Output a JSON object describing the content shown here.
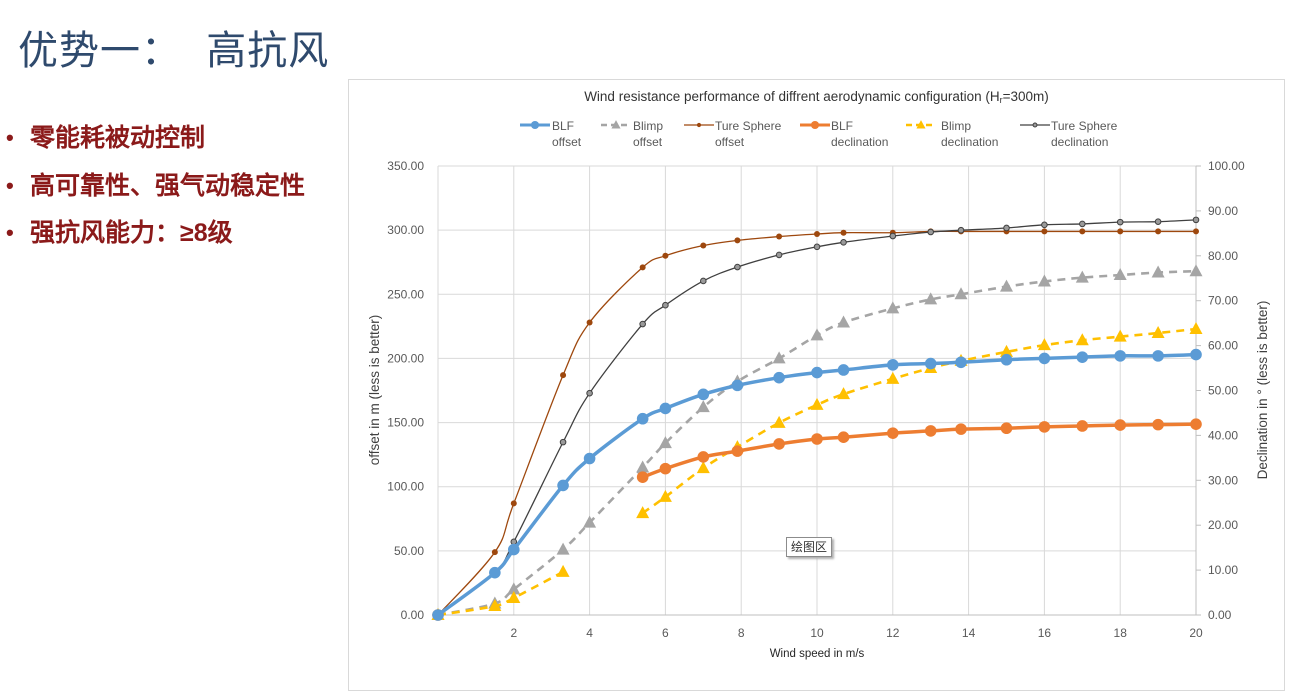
{
  "slide": {
    "title": "优势一：  高抗风",
    "bullet_symbol": "•",
    "bullets": [
      "零能耗被动控制",
      "高可靠性、强气动稳定性",
      "强抗风能力：≥8级"
    ]
  },
  "tooltip": {
    "text": "绘图区"
  },
  "chart_data": {
    "type": "line",
    "title": "Wind resistance performance of diffrent aerodynamic configuration (H",
    "title_subscript": "r",
    "title_suffix": "=300m)",
    "xlabel": "Wind speed in m/s",
    "ylabel": "offset in m (less is better)",
    "y2label": "Declination in ° (less is better)",
    "xlim": [
      0,
      20
    ],
    "ylim": [
      0,
      350
    ],
    "y2lim": [
      0,
      100
    ],
    "grid": true,
    "legend_position": "top",
    "xticks": [
      {
        "value": 2,
        "label": "2"
      },
      {
        "value": 4,
        "label": "4"
      },
      {
        "value": 6,
        "label": "6"
      },
      {
        "value": 8,
        "label": "8"
      },
      {
        "value": 10,
        "label": "10"
      },
      {
        "value": 12,
        "label": "12"
      },
      {
        "value": 14,
        "label": "14"
      },
      {
        "value": 16,
        "label": "16"
      },
      {
        "value": 18,
        "label": "18"
      },
      {
        "value": 20,
        "label": "20"
      }
    ],
    "yticks": [
      {
        "value": 0,
        "label": "0.00"
      },
      {
        "value": 50,
        "label": "50.00"
      },
      {
        "value": 100,
        "label": "100.00"
      },
      {
        "value": 150,
        "label": "150.00"
      },
      {
        "value": 200,
        "label": "200.00"
      },
      {
        "value": 250,
        "label": "250.00"
      },
      {
        "value": 300,
        "label": "300.00"
      },
      {
        "value": 350,
        "label": "350.00"
      }
    ],
    "y2ticks": [
      {
        "value": 0,
        "label": "0.00"
      },
      {
        "value": 10,
        "label": "10.00"
      },
      {
        "value": 20,
        "label": "20.00"
      },
      {
        "value": 30,
        "label": "30.00"
      },
      {
        "value": 40,
        "label": "40.00"
      },
      {
        "value": 50,
        "label": "50.00"
      },
      {
        "value": 60,
        "label": "60.00"
      },
      {
        "value": 70,
        "label": "70.00"
      },
      {
        "value": 80,
        "label": "80.00"
      },
      {
        "value": 90,
        "label": "90.00"
      },
      {
        "value": 100,
        "label": "100.00"
      }
    ],
    "x": [
      0,
      1.5,
      2,
      3.3,
      4,
      5.4,
      6,
      7,
      7.9,
      9,
      10,
      10.7,
      12,
      13,
      13.8,
      15,
      16,
      17,
      18,
      19,
      20
    ],
    "series": [
      {
        "name": "BLF offset",
        "legend_lines": [
          "BLF",
          "offset"
        ],
        "axis": "left",
        "color": "#5b9bd5",
        "marker": "circle",
        "line": "solid-thick",
        "values": [
          0,
          33,
          51,
          101,
          122,
          153,
          161,
          172,
          179,
          185,
          189,
          191,
          195,
          196,
          197,
          199,
          200,
          201,
          202,
          202,
          203
        ]
      },
      {
        "name": "Blimp offset",
        "legend_lines": [
          "Blimp",
          "offset"
        ],
        "axis": "left",
        "color": "#a5a5a5",
        "marker": "triangle",
        "line": "dashed",
        "values": [
          0,
          9,
          20,
          51,
          72,
          115,
          134,
          162,
          182,
          200,
          218,
          228,
          239,
          246,
          250,
          256,
          260,
          263,
          265,
          267,
          268
        ]
      },
      {
        "name": "Ture Sphere offset",
        "legend_lines": [
          "Ture Sphere",
          "offset"
        ],
        "axis": "left",
        "color": "#9e480e",
        "marker": "small-circle",
        "line": "solid-thin",
        "values": [
          0,
          49,
          87,
          187,
          228,
          271,
          280,
          288,
          292,
          295,
          297,
          298,
          298,
          299,
          299,
          299,
          299,
          299,
          299,
          299,
          299
        ]
      },
      {
        "name": "BLF declination",
        "legend_lines": [
          "BLF",
          "declination"
        ],
        "axis": "right",
        "color": "#ed7d31",
        "marker": "circle",
        "line": "solid-thick",
        "values": [
          0,
          null,
          null,
          null,
          null,
          30.7,
          32.6,
          35.2,
          36.5,
          38.1,
          39.2,
          39.6,
          40.5,
          41.0,
          41.4,
          41.6,
          41.9,
          42.1,
          42.3,
          42.4,
          42.5
        ]
      },
      {
        "name": "Blimp declination",
        "legend_lines": [
          "Blimp",
          "declination"
        ],
        "axis": "right",
        "color": "#ffc000",
        "marker": "triangle",
        "line": "dashed",
        "values": [
          0,
          2.0,
          3.8,
          9.6,
          null,
          22.7,
          26.3,
          32.7,
          37.4,
          42.8,
          46.8,
          49.2,
          52.6,
          55.0,
          56.6,
          58.6,
          60.1,
          61.2,
          62.0,
          62.8,
          63.7
        ]
      },
      {
        "name": "Ture Sphere declination",
        "legend_lines": [
          "Ture Sphere",
          "declination"
        ],
        "axis": "right",
        "color": "#404040",
        "marker": "hollow-circle",
        "line": "solid-thin",
        "values": [
          0,
          9.5,
          16.3,
          38.5,
          49.4,
          64.8,
          69.0,
          74.4,
          77.5,
          80.2,
          82.0,
          83.0,
          84.4,
          85.3,
          85.7,
          86.2,
          86.9,
          87.1,
          87.5,
          87.6,
          88.0
        ]
      }
    ]
  }
}
